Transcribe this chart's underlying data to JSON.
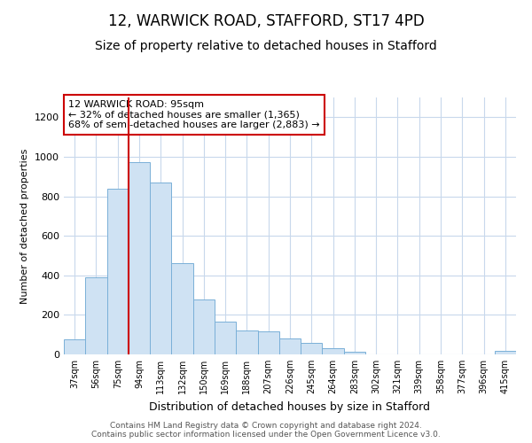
{
  "title1": "12, WARWICK ROAD, STAFFORD, ST17 4PD",
  "title2": "Size of property relative to detached houses in Stafford",
  "xlabel": "Distribution of detached houses by size in Stafford",
  "ylabel": "Number of detached properties",
  "categories": [
    "37sqm",
    "56sqm",
    "75sqm",
    "94sqm",
    "113sqm",
    "132sqm",
    "150sqm",
    "169sqm",
    "188sqm",
    "207sqm",
    "226sqm",
    "245sqm",
    "264sqm",
    "283sqm",
    "302sqm",
    "321sqm",
    "339sqm",
    "358sqm",
    "377sqm",
    "396sqm",
    "415sqm"
  ],
  "values": [
    75,
    390,
    840,
    975,
    870,
    460,
    280,
    165,
    120,
    115,
    80,
    60,
    30,
    15,
    0,
    0,
    0,
    0,
    0,
    0,
    20
  ],
  "bar_color": "#cfe2f3",
  "bar_edge_color": "#7ab0d8",
  "highlight_bar_index": 3,
  "highlight_color": "#cc0000",
  "annotation_text": "12 WARWICK ROAD: 95sqm\n← 32% of detached houses are smaller (1,365)\n68% of semi-detached houses are larger (2,883) →",
  "annotation_box_color": "#ffffff",
  "annotation_box_edge_color": "#cc0000",
  "ylim": [
    0,
    1300
  ],
  "yticks": [
    0,
    200,
    400,
    600,
    800,
    1000,
    1200
  ],
  "footer1": "Contains HM Land Registry data © Crown copyright and database right 2024.",
  "footer2": "Contains public sector information licensed under the Open Government Licence v3.0.",
  "bg_color": "#ffffff",
  "grid_color": "#c8d8ec",
  "title1_fontsize": 12,
  "title2_fontsize": 10,
  "annot_fontsize": 8,
  "ylabel_fontsize": 8,
  "xlabel_fontsize": 9
}
